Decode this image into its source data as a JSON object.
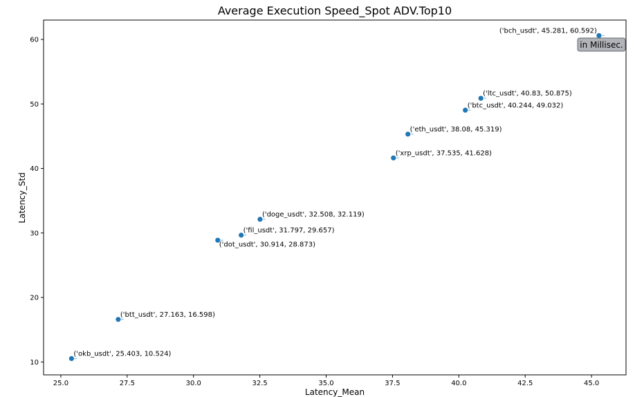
{
  "chart_data": {
    "type": "scatter",
    "title": "Average Execution Speed_Spot ADV.Top10",
    "xlabel": "Latency_Mean",
    "ylabel": "Latency_Std",
    "xlim": [
      24.35,
      46.3
    ],
    "ylim": [
      8.0,
      63.0
    ],
    "xticks": [
      25.0,
      27.5,
      30.0,
      32.5,
      35.0,
      37.5,
      40.0,
      42.5,
      45.0
    ],
    "xtick_labels": [
      "25.0",
      "27.5",
      "30.0",
      "32.5",
      "35.0",
      "37.5",
      "40.0",
      "42.5",
      "45.0"
    ],
    "yticks": [
      10,
      20,
      30,
      40,
      50,
      60
    ],
    "ytick_labels": [
      "10",
      "20",
      "30",
      "40",
      "50",
      "60"
    ],
    "grid": false,
    "marker_color": "#1f77b4",
    "points": [
      {
        "symbol": "bch_usdt",
        "x": 45.281,
        "y": 60.592,
        "label": "('bch_usdt', 45.281, 60.592)"
      },
      {
        "symbol": "ltc_usdt",
        "x": 40.83,
        "y": 50.875,
        "label": "('ltc_usdt', 40.83, 50.875)"
      },
      {
        "symbol": "btc_usdt",
        "x": 40.244,
        "y": 49.032,
        "label": "('btc_usdt', 40.244, 49.032)"
      },
      {
        "symbol": "eth_usdt",
        "x": 38.08,
        "y": 45.319,
        "label": "('eth_usdt', 38.08, 45.319)"
      },
      {
        "symbol": "xrp_usdt",
        "x": 37.535,
        "y": 41.628,
        "label": "('xrp_usdt', 37.535, 41.628)"
      },
      {
        "symbol": "doge_usdt",
        "x": 32.508,
        "y": 32.119,
        "label": "('doge_usdt', 32.508, 32.119)"
      },
      {
        "symbol": "fil_usdt",
        "x": 31.797,
        "y": 29.657,
        "label": "('fil_usdt', 31.797, 29.657)"
      },
      {
        "symbol": "dot_usdt",
        "x": 30.914,
        "y": 28.873,
        "label": "('dot_usdt', 30.914, 28.873)"
      },
      {
        "symbol": "btt_usdt",
        "x": 27.163,
        "y": 16.598,
        "label": "('btt_usdt', 27.163, 16.598)"
      },
      {
        "symbol": "okb_usdt",
        "x": 25.403,
        "y": 10.524,
        "label": "('okb_usdt', 25.403, 10.524)"
      }
    ],
    "annotation": {
      "text": "in Millisec.",
      "placement": "top-right"
    }
  }
}
